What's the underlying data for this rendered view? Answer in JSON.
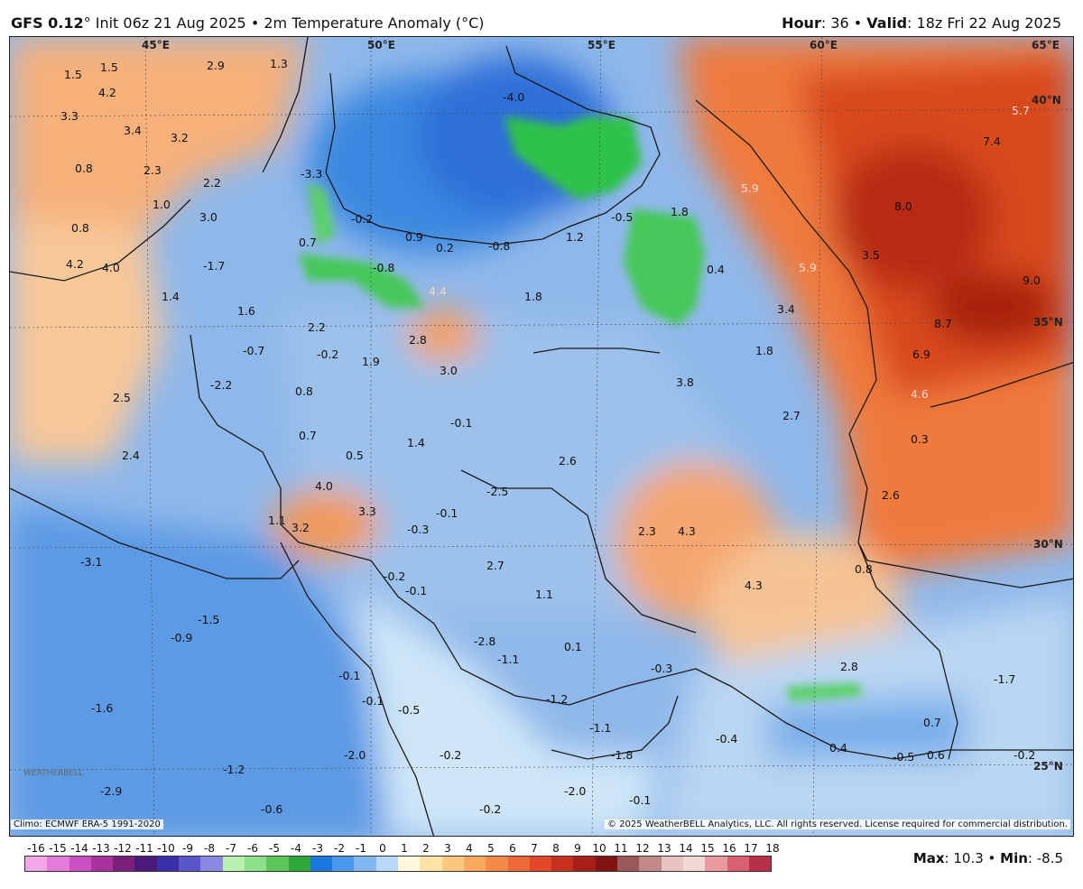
{
  "header": {
    "model": "GFS 0.12",
    "degree": "°",
    "init_text": " Init 06z 21 Aug 2025 • 2m Temperature Anomaly (°C)",
    "hour_label": "Hour",
    "hour_value": ": 36 • ",
    "valid_label": "Valid",
    "valid_value": ": 18z Fri 22 Aug 2025"
  },
  "map": {
    "lon_labels": [
      "45°E",
      "50°E",
      "55°E",
      "60°E",
      "65°E"
    ],
    "lat_labels": [
      "40°N",
      "35°N",
      "30°N",
      "25°N"
    ],
    "values": [
      {
        "text": "1.5"
      },
      {
        "text": "1.5"
      },
      {
        "text": "2.9"
      },
      {
        "text": "1.3"
      },
      {
        "text": "4.2"
      },
      {
        "text": "3.3"
      },
      {
        "text": "3.4"
      },
      {
        "text": "3.2"
      },
      {
        "text": "0.8"
      },
      {
        "text": "2.3"
      },
      {
        "text": "2.2"
      },
      {
        "text": "1.0"
      },
      {
        "text": "3.0"
      },
      {
        "text": "0.8"
      },
      {
        "text": "-3.3"
      },
      {
        "text": "-0.2"
      },
      {
        "text": "0.9"
      },
      {
        "text": "0.2"
      },
      {
        "text": "-0.8"
      },
      {
        "text": "1.2"
      },
      {
        "text": "-0.5"
      },
      {
        "text": "1.8"
      },
      {
        "text": "4.2"
      },
      {
        "text": "4.0"
      },
      {
        "text": "-1.7"
      },
      {
        "text": "0.7"
      },
      {
        "text": "-0.8"
      },
      {
        "text": "4.4"
      },
      {
        "text": "1.8"
      },
      {
        "text": "0.4"
      },
      {
        "text": "5.9"
      },
      {
        "text": "1.4"
      },
      {
        "text": "1.6"
      },
      {
        "text": "2.2"
      },
      {
        "text": "2.8"
      },
      {
        "text": "3.4"
      },
      {
        "text": "-0.7"
      },
      {
        "text": "-0.2"
      },
      {
        "text": "1.9"
      },
      {
        "text": "3.0"
      },
      {
        "text": "1.8"
      },
      {
        "text": "-2.2"
      },
      {
        "text": "0.8"
      },
      {
        "text": "3.8"
      },
      {
        "text": "2.5"
      },
      {
        "text": "-0.1"
      },
      {
        "text": "2.7"
      },
      {
        "text": "0.7"
      },
      {
        "text": "1.4"
      },
      {
        "text": "0.5"
      },
      {
        "text": "2.6"
      },
      {
        "text": "2.4"
      },
      {
        "text": "4.0"
      },
      {
        "text": "-2.5"
      },
      {
        "text": "3.3"
      },
      {
        "text": "1.1"
      },
      {
        "text": "-0.1"
      },
      {
        "text": "3.2"
      },
      {
        "text": "-0.3"
      },
      {
        "text": "2.3"
      },
      {
        "text": "4.3"
      },
      {
        "text": "-3.1"
      },
      {
        "text": "-0.2"
      },
      {
        "text": "-0.1"
      },
      {
        "text": "2.7"
      },
      {
        "text": "1.1"
      },
      {
        "text": "4.3"
      },
      {
        "text": "-1.5"
      },
      {
        "text": "-0.9"
      },
      {
        "text": "-2.8"
      },
      {
        "text": "0.1"
      },
      {
        "text": "-1.1"
      },
      {
        "text": "-0.3"
      },
      {
        "text": "-0.1"
      },
      {
        "text": "-1.2"
      },
      {
        "text": "-0.1"
      },
      {
        "text": "-0.5"
      },
      {
        "text": "-1.6"
      },
      {
        "text": "-1.1"
      },
      {
        "text": "-2.0"
      },
      {
        "text": "-0.2"
      },
      {
        "text": "-1.8"
      },
      {
        "text": "-1.2"
      },
      {
        "text": "-2.9"
      },
      {
        "text": "-0.6"
      },
      {
        "text": "-0.2"
      },
      {
        "text": "-2.0"
      },
      {
        "text": "-0.1"
      },
      {
        "text": "-0.4"
      },
      {
        "text": "0.4"
      },
      {
        "text": "-0.5"
      },
      {
        "text": "0.6"
      },
      {
        "text": "-0.2"
      },
      {
        "text": "0.7"
      },
      {
        "text": "2.8"
      },
      {
        "text": "-1.7"
      },
      {
        "text": "0.8"
      },
      {
        "text": "2.6"
      },
      {
        "text": "0.3"
      },
      {
        "text": "4.6"
      },
      {
        "text": "6.9"
      },
      {
        "text": "8.7"
      },
      {
        "text": "9.0"
      },
      {
        "text": "8.0"
      },
      {
        "text": "7.4"
      },
      {
        "text": "5.7"
      },
      {
        "text": "5.9"
      },
      {
        "text": "3.5"
      },
      {
        "text": "-4.0"
      }
    ]
  },
  "footer": {
    "climo": "Climo: ECMWF ERA-5 1991-2020",
    "copyright": "© 2025 WeatherBELL Analytics, LLC. All rights reserved. License required for commercial distribution.",
    "logo": "WEATHERBELL",
    "max_label": "Max",
    "max_value": ": 10.3 • ",
    "min_label": "Min",
    "min_value": ": -8.5"
  },
  "colorbar": {
    "ticks": [
      "-16",
      "-15",
      "-14",
      "-13",
      "-12",
      "-11",
      "-10",
      "-9",
      "-8",
      "-7",
      "-6",
      "-5",
      "-4",
      "-3",
      "-2",
      "-1",
      "0",
      "1",
      "2",
      "3",
      "4",
      "5",
      "6",
      "7",
      "8",
      "9",
      "10",
      "11",
      "12",
      "13",
      "14",
      "15",
      "16",
      "17",
      "18"
    ],
    "colors": [
      "#f2a8e8",
      "#e67ad8",
      "#cc4fc4",
      "#a8329e",
      "#7a1f7a",
      "#4a1a7a",
      "#3a2fa8",
      "#5a55c8",
      "#8a88e0",
      "#b9f0b0",
      "#8fe08a",
      "#5cc85a",
      "#2da83a",
      "#1a78e0",
      "#4a98ea",
      "#80b8f0",
      "#b8d8f6",
      "#fff8dc",
      "#fde3a8",
      "#fcc880",
      "#f9a860",
      "#f48a48",
      "#ee6838",
      "#e04828",
      "#c83020",
      "#a81e18",
      "#801410",
      "#9a5a5a",
      "#c08a88",
      "#e8c4c0",
      "#f2d8d4",
      "#e89aa0",
      "#d86070",
      "#b83048"
    ]
  },
  "colors": {
    "sea_blue": "#3d7fd6",
    "cold_green": "#2ec24a",
    "warm_orange": "#f08a4a",
    "hot_red": "#c8381e"
  }
}
